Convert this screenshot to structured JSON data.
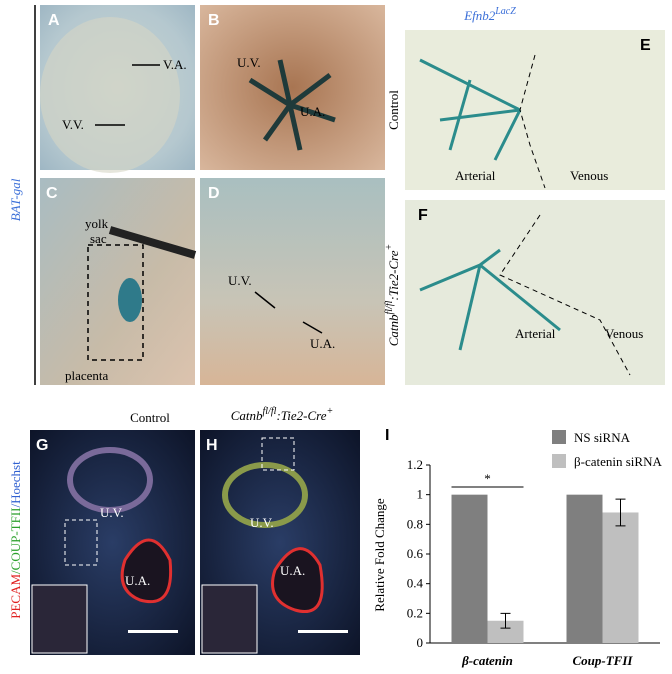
{
  "left_label": "BAT-gal",
  "panel_a": {
    "letter": "A",
    "labels": [
      "V.A.",
      "V.V."
    ]
  },
  "panel_b": {
    "letter": "B",
    "labels": [
      "U.V.",
      "U.A."
    ]
  },
  "panel_c": {
    "letter": "C",
    "labels": [
      "yolk",
      "sac",
      "placenta"
    ]
  },
  "panel_d": {
    "letter": "D",
    "labels": [
      "U.V.",
      "U.A."
    ]
  },
  "efnb2_title": {
    "base": "Efnb2",
    "sup": "LacZ"
  },
  "panel_e": {
    "letter": "E",
    "row_label": "Control",
    "labels": [
      "Arterial",
      "Venous"
    ]
  },
  "panel_f": {
    "letter": "F",
    "row_label": {
      "base": "Catnb",
      "sup1": "fl/fl",
      "mid": ":Tie2-Cre",
      "sup2": "+"
    },
    "labels": [
      "Arterial",
      "Venous"
    ]
  },
  "stain_label": [
    "PECAM",
    "/COUP-TFII",
    "/Hoechst"
  ],
  "panel_g": {
    "letter": "G",
    "column_label": "Control",
    "labels": [
      "U.V.",
      "U.A."
    ]
  },
  "panel_h": {
    "letter": "H",
    "column_label": {
      "base": "Catnb",
      "sup1": "fl/fl",
      "mid": ":Tie2-Cre",
      "sup2": "+"
    },
    "labels": [
      "U.V.",
      "U.A."
    ]
  },
  "panel_i": {
    "letter": "I"
  },
  "chart_data": {
    "type": "bar",
    "ylabel": "Relative Fold Change",
    "categories": [
      "β-catenin",
      "Coup-TFII"
    ],
    "series": [
      {
        "name": "NS siRNA",
        "color": "#7f7f7f",
        "values": [
          1,
          1
        ]
      },
      {
        "name": "β-catenin siRNA",
        "color": "#bfbfbf",
        "values": [
          0.15,
          0.88
        ],
        "errors": [
          0.05,
          0.09
        ]
      }
    ],
    "ylim": [
      0,
      1.2
    ],
    "yticks": [
      0,
      0.2,
      0.4,
      0.6,
      0.8,
      1,
      1.2
    ],
    "annotation": "*"
  }
}
